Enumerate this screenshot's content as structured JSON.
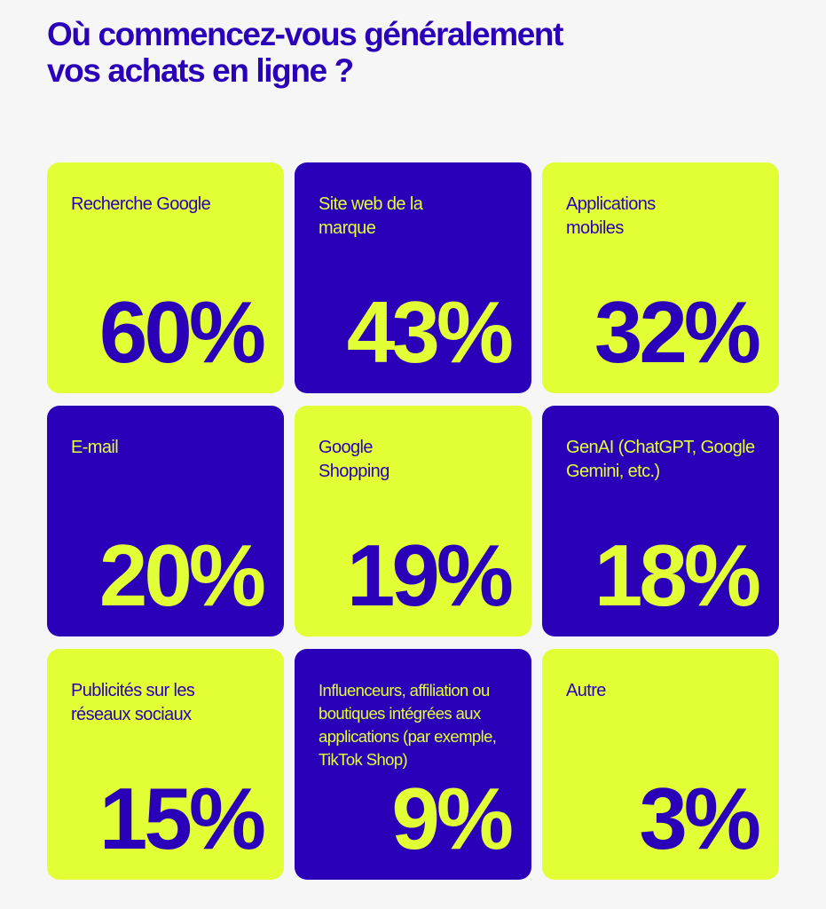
{
  "title": {
    "line1": "Où commencez-vous généralement",
    "line2": "vos achats en ligne ?"
  },
  "colors": {
    "lime": "#e2ff36",
    "indigo": "#2a00b8",
    "background": "#f6f6f6"
  },
  "tiles": [
    {
      "label": "Recherche Google",
      "value": "60%",
      "theme": "lime"
    },
    {
      "label": "Site web de la marque",
      "value": "43%",
      "theme": "indigo"
    },
    {
      "label": "Applications mobiles",
      "value": "32%",
      "theme": "lime"
    },
    {
      "label": "E-mail",
      "value": "20%",
      "theme": "indigo"
    },
    {
      "label": "Google Shopping",
      "value": "19%",
      "theme": "lime"
    },
    {
      "label": "GenAI (ChatGPT, Google Gemini, etc.)",
      "value": "18%",
      "theme": "indigo"
    },
    {
      "label": "Publicités sur les réseaux sociaux",
      "value": "15%",
      "theme": "lime"
    },
    {
      "label": "Influenceurs, affiliation ou boutiques intégrées aux applications (par exemple, TikTok Shop)",
      "value": "9%",
      "theme": "indigo"
    },
    {
      "label": "Autre",
      "value": "3%",
      "theme": "lime"
    }
  ]
}
